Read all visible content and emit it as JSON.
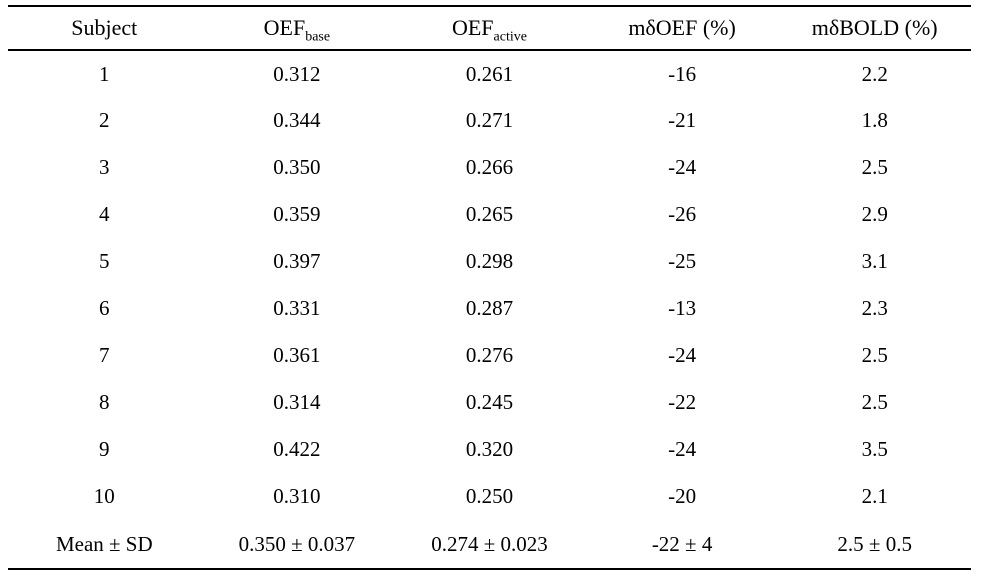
{
  "page": {
    "background_color": "#ffffff",
    "text_color": "#000000",
    "rule_color": "#000000"
  },
  "table": {
    "columns": [
      {
        "label": "Subject",
        "sub": ""
      },
      {
        "label": "OEF",
        "sub": "base"
      },
      {
        "label": "OEF",
        "sub": "active"
      },
      {
        "label": "mδOEF (%)",
        "sub": ""
      },
      {
        "label": "mδBOLD (%)",
        "sub": ""
      }
    ],
    "rows": [
      [
        "1",
        "0.312",
        "0.261",
        "-16",
        "2.2"
      ],
      [
        "2",
        "0.344",
        "0.271",
        "-21",
        "1.8"
      ],
      [
        "3",
        "0.350",
        "0.266",
        "-24",
        "2.5"
      ],
      [
        "4",
        "0.359",
        "0.265",
        "-26",
        "2.9"
      ],
      [
        "5",
        "0.397",
        "0.298",
        "-25",
        "3.1"
      ],
      [
        "6",
        "0.331",
        "0.287",
        "-13",
        "2.3"
      ],
      [
        "7",
        "0.361",
        "0.276",
        "-24",
        "2.5"
      ],
      [
        "8",
        "0.314",
        "0.245",
        "-22",
        "2.5"
      ],
      [
        "9",
        "0.422",
        "0.320",
        "-24",
        "3.5"
      ],
      [
        "10",
        "0.310",
        "0.250",
        "-20",
        "2.1"
      ],
      [
        "Mean ± SD",
        "0.350 ± 0.037",
        "0.274 ± 0.023",
        "-22 ± 4",
        "2.5 ± 0.5"
      ]
    ]
  }
}
